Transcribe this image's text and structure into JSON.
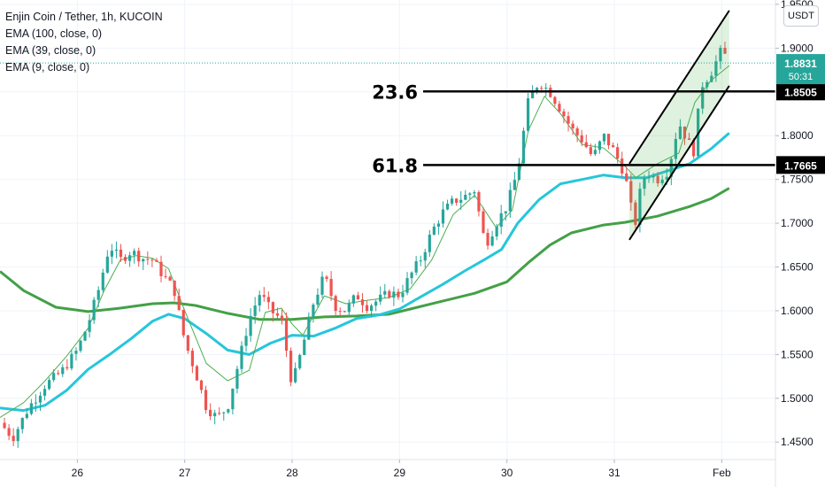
{
  "chart_data": {
    "type": "candlestick",
    "title": "Enjin Coin / Tether, 1h, KUCOIN",
    "indicators": [
      "EMA (100, close, 0)",
      "EMA (39, close, 0)",
      "EMA (9, close, 0)"
    ],
    "currency_button": "USDT",
    "ylim": [
      1.43,
      1.955
    ],
    "y_ticks": [
      "1.9500",
      "1.9000",
      "1.8500",
      "1.8000",
      "1.7500",
      "1.7000",
      "1.6500",
      "1.6000",
      "1.5500",
      "1.5000",
      "1.4500"
    ],
    "x_ticks": [
      {
        "label": "26",
        "day": 1
      },
      {
        "label": "27",
        "day": 2
      },
      {
        "label": "28",
        "day": 3
      },
      {
        "label": "29",
        "day": 4
      },
      {
        "label": "30",
        "day": 5
      },
      {
        "label": "31",
        "day": 6
      },
      {
        "label": "Feb",
        "day": 7
      }
    ],
    "xlim_days": [
      0.28,
      7.5
    ],
    "last_price": {
      "value": 1.8831,
      "label": "1.8831",
      "countdown": "50:31"
    },
    "fib_levels": [
      {
        "label": "23.6",
        "value": 1.8505,
        "price_label": "1.8505",
        "x_start_day": 4.22
      },
      {
        "label": "61.8",
        "value": 1.7665,
        "price_label": "1.7665",
        "x_start_day": 4.22
      }
    ],
    "channel": {
      "upper": [
        {
          "day": 6.14,
          "price": 1.768
        },
        {
          "day": 7.07,
          "price": 1.943
        }
      ],
      "lower": [
        {
          "day": 6.14,
          "price": 1.681
        },
        {
          "day": 7.07,
          "price": 1.857
        }
      ]
    },
    "ema100": [
      {
        "day": 0.28,
        "price": 1.645
      },
      {
        "day": 0.5,
        "price": 1.623
      },
      {
        "day": 0.8,
        "price": 1.604
      },
      {
        "day": 1.1,
        "price": 1.599
      },
      {
        "day": 1.4,
        "price": 1.603
      },
      {
        "day": 1.7,
        "price": 1.608
      },
      {
        "day": 1.9,
        "price": 1.609
      },
      {
        "day": 2.1,
        "price": 1.606
      },
      {
        "day": 2.4,
        "price": 1.597
      },
      {
        "day": 2.7,
        "price": 1.59
      },
      {
        "day": 3.0,
        "price": 1.59
      },
      {
        "day": 3.3,
        "price": 1.593
      },
      {
        "day": 3.6,
        "price": 1.594
      },
      {
        "day": 3.9,
        "price": 1.596
      },
      {
        "day": 4.1,
        "price": 1.602
      },
      {
        "day": 4.4,
        "price": 1.611
      },
      {
        "day": 4.7,
        "price": 1.62
      },
      {
        "day": 5.0,
        "price": 1.633
      },
      {
        "day": 5.2,
        "price": 1.655
      },
      {
        "day": 5.4,
        "price": 1.675
      },
      {
        "day": 5.6,
        "price": 1.689
      },
      {
        "day": 5.9,
        "price": 1.698
      },
      {
        "day": 6.1,
        "price": 1.701
      },
      {
        "day": 6.4,
        "price": 1.708
      },
      {
        "day": 6.7,
        "price": 1.719
      },
      {
        "day": 6.9,
        "price": 1.728
      },
      {
        "day": 7.07,
        "price": 1.74
      }
    ],
    "ema39": [
      {
        "day": 0.28,
        "price": 1.489
      },
      {
        "day": 0.5,
        "price": 1.486
      },
      {
        "day": 0.7,
        "price": 1.492
      },
      {
        "day": 0.9,
        "price": 1.509
      },
      {
        "day": 1.1,
        "price": 1.533
      },
      {
        "day": 1.3,
        "price": 1.55
      },
      {
        "day": 1.5,
        "price": 1.568
      },
      {
        "day": 1.7,
        "price": 1.588
      },
      {
        "day": 1.85,
        "price": 1.596
      },
      {
        "day": 2.0,
        "price": 1.591
      },
      {
        "day": 2.2,
        "price": 1.574
      },
      {
        "day": 2.4,
        "price": 1.555
      },
      {
        "day": 2.6,
        "price": 1.55
      },
      {
        "day": 2.8,
        "price": 1.563
      },
      {
        "day": 3.0,
        "price": 1.572
      },
      {
        "day": 3.2,
        "price": 1.571
      },
      {
        "day": 3.4,
        "price": 1.58
      },
      {
        "day": 3.6,
        "price": 1.591
      },
      {
        "day": 3.8,
        "price": 1.595
      },
      {
        "day": 4.0,
        "price": 1.602
      },
      {
        "day": 4.2,
        "price": 1.616
      },
      {
        "day": 4.4,
        "price": 1.63
      },
      {
        "day": 4.6,
        "price": 1.645
      },
      {
        "day": 4.8,
        "price": 1.659
      },
      {
        "day": 4.95,
        "price": 1.67
      },
      {
        "day": 5.1,
        "price": 1.7
      },
      {
        "day": 5.3,
        "price": 1.727
      },
      {
        "day": 5.5,
        "price": 1.745
      },
      {
        "day": 5.7,
        "price": 1.75
      },
      {
        "day": 5.9,
        "price": 1.755
      },
      {
        "day": 6.1,
        "price": 1.752
      },
      {
        "day": 6.3,
        "price": 1.752
      },
      {
        "day": 6.5,
        "price": 1.76
      },
      {
        "day": 6.7,
        "price": 1.768
      },
      {
        "day": 6.9,
        "price": 1.785
      },
      {
        "day": 7.07,
        "price": 1.803
      }
    ],
    "ema9": [
      {
        "day": 0.28,
        "price": 1.478
      },
      {
        "day": 0.5,
        "price": 1.495
      },
      {
        "day": 0.7,
        "price": 1.52
      },
      {
        "day": 0.9,
        "price": 1.548
      },
      {
        "day": 1.1,
        "price": 1.58
      },
      {
        "day": 1.25,
        "price": 1.623
      },
      {
        "day": 1.4,
        "price": 1.658
      },
      {
        "day": 1.55,
        "price": 1.663
      },
      {
        "day": 1.7,
        "price": 1.66
      },
      {
        "day": 1.85,
        "price": 1.648
      },
      {
        "day": 2.0,
        "price": 1.6
      },
      {
        "day": 2.2,
        "price": 1.54
      },
      {
        "day": 2.4,
        "price": 1.52
      },
      {
        "day": 2.6,
        "price": 1.532
      },
      {
        "day": 2.75,
        "price": 1.598
      },
      {
        "day": 2.9,
        "price": 1.603
      },
      {
        "day": 3.0,
        "price": 1.585
      },
      {
        "day": 3.1,
        "price": 1.572
      },
      {
        "day": 3.3,
        "price": 1.617
      },
      {
        "day": 3.5,
        "price": 1.608
      },
      {
        "day": 3.7,
        "price": 1.612
      },
      {
        "day": 3.9,
        "price": 1.615
      },
      {
        "day": 4.1,
        "price": 1.625
      },
      {
        "day": 4.3,
        "price": 1.658
      },
      {
        "day": 4.5,
        "price": 1.71
      },
      {
        "day": 4.7,
        "price": 1.732
      },
      {
        "day": 4.9,
        "price": 1.695
      },
      {
        "day": 5.05,
        "price": 1.715
      },
      {
        "day": 5.2,
        "price": 1.806
      },
      {
        "day": 5.35,
        "price": 1.845
      },
      {
        "day": 5.5,
        "price": 1.825
      },
      {
        "day": 5.7,
        "price": 1.79
      },
      {
        "day": 5.9,
        "price": 1.786
      },
      {
        "day": 6.1,
        "price": 1.765
      },
      {
        "day": 6.2,
        "price": 1.752
      },
      {
        "day": 6.4,
        "price": 1.768
      },
      {
        "day": 6.6,
        "price": 1.78
      },
      {
        "day": 6.75,
        "price": 1.838
      },
      {
        "day": 6.9,
        "price": 1.863
      },
      {
        "day": 7.07,
        "price": 1.88
      }
    ],
    "price_path": [
      {
        "day": 0.28,
        "price": 1.472
      },
      {
        "day": 0.4,
        "price": 1.455
      },
      {
        "day": 0.55,
        "price": 1.49
      },
      {
        "day": 0.7,
        "price": 1.515
      },
      {
        "day": 0.85,
        "price": 1.53
      },
      {
        "day": 1.0,
        "price": 1.555
      },
      {
        "day": 1.1,
        "price": 1.585
      },
      {
        "day": 1.2,
        "price": 1.625
      },
      {
        "day": 1.3,
        "price": 1.675
      },
      {
        "day": 1.4,
        "price": 1.658
      },
      {
        "day": 1.5,
        "price": 1.668
      },
      {
        "day": 1.6,
        "price": 1.66
      },
      {
        "day": 1.7,
        "price": 1.658
      },
      {
        "day": 1.8,
        "price": 1.64
      },
      {
        "day": 1.9,
        "price": 1.625
      },
      {
        "day": 2.0,
        "price": 1.565
      },
      {
        "day": 2.1,
        "price": 1.53
      },
      {
        "day": 2.2,
        "price": 1.49
      },
      {
        "day": 2.3,
        "price": 1.478
      },
      {
        "day": 2.4,
        "price": 1.49
      },
      {
        "day": 2.5,
        "price": 1.54
      },
      {
        "day": 2.6,
        "price": 1.59
      },
      {
        "day": 2.7,
        "price": 1.62
      },
      {
        "day": 2.8,
        "price": 1.6
      },
      {
        "day": 2.9,
        "price": 1.59
      },
      {
        "day": 3.0,
        "price": 1.515
      },
      {
        "day": 3.1,
        "price": 1.56
      },
      {
        "day": 3.2,
        "price": 1.61
      },
      {
        "day": 3.3,
        "price": 1.64
      },
      {
        "day": 3.4,
        "price": 1.605
      },
      {
        "day": 3.5,
        "price": 1.6
      },
      {
        "day": 3.6,
        "price": 1.618
      },
      {
        "day": 3.7,
        "price": 1.605
      },
      {
        "day": 3.8,
        "price": 1.612
      },
      {
        "day": 3.9,
        "price": 1.62
      },
      {
        "day": 4.0,
        "price": 1.618
      },
      {
        "day": 4.1,
        "price": 1.64
      },
      {
        "day": 4.2,
        "price": 1.66
      },
      {
        "day": 4.3,
        "price": 1.69
      },
      {
        "day": 4.4,
        "price": 1.712
      },
      {
        "day": 4.5,
        "price": 1.725
      },
      {
        "day": 4.6,
        "price": 1.73
      },
      {
        "day": 4.7,
        "price": 1.738
      },
      {
        "day": 4.75,
        "price": 1.705
      },
      {
        "day": 4.8,
        "price": 1.675
      },
      {
        "day": 4.9,
        "price": 1.7
      },
      {
        "day": 5.0,
        "price": 1.72
      },
      {
        "day": 5.1,
        "price": 1.76
      },
      {
        "day": 5.15,
        "price": 1.8
      },
      {
        "day": 5.2,
        "price": 1.84
      },
      {
        "day": 5.3,
        "price": 1.862
      },
      {
        "day": 5.4,
        "price": 1.85
      },
      {
        "day": 5.5,
        "price": 1.83
      },
      {
        "day": 5.6,
        "price": 1.808
      },
      {
        "day": 5.7,
        "price": 1.795
      },
      {
        "day": 5.8,
        "price": 1.775
      },
      {
        "day": 5.9,
        "price": 1.8
      },
      {
        "day": 6.0,
        "price": 1.782
      },
      {
        "day": 6.1,
        "price": 1.755
      },
      {
        "day": 6.15,
        "price": 1.72
      },
      {
        "day": 6.2,
        "price": 1.7
      },
      {
        "day": 6.25,
        "price": 1.745
      },
      {
        "day": 6.3,
        "price": 1.758
      },
      {
        "day": 6.4,
        "price": 1.75
      },
      {
        "day": 6.5,
        "price": 1.76
      },
      {
        "day": 6.6,
        "price": 1.815
      },
      {
        "day": 6.7,
        "price": 1.79
      },
      {
        "day": 6.75,
        "price": 1.78
      },
      {
        "day": 6.8,
        "price": 1.855
      },
      {
        "day": 6.9,
        "price": 1.872
      },
      {
        "day": 7.0,
        "price": 1.898
      },
      {
        "day": 7.07,
        "price": 1.883
      }
    ]
  }
}
